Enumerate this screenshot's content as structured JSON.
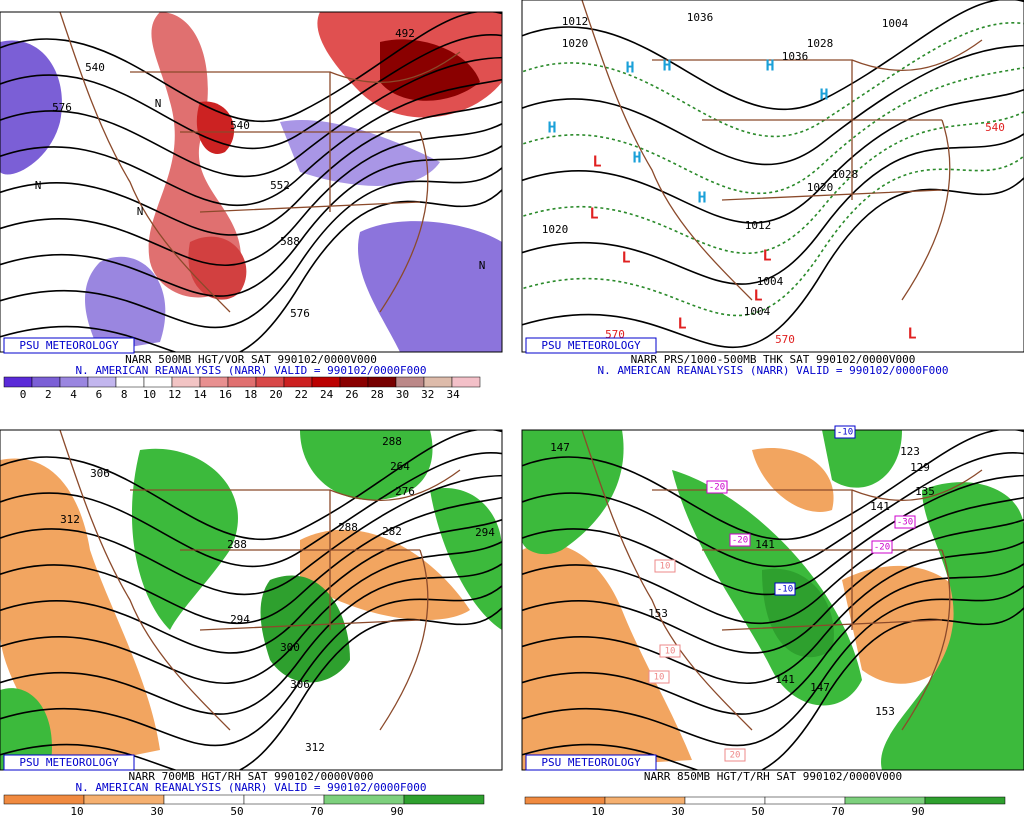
{
  "panels": [
    {
      "badge": "PSU METEOROLOGY",
      "title": "NARR 500MB HGT/VOR SAT 990102/0000V000",
      "subtitle": "N. AMERICAN REANALYSIS (NARR) VALID = 990102/0000F000",
      "colorbar": [
        0,
        2,
        4,
        6,
        8,
        10,
        12,
        14,
        16,
        18,
        20,
        22,
        24,
        26,
        28,
        30,
        32,
        34
      ],
      "labels": [
        "576",
        "540",
        "552",
        "588",
        "576",
        "492",
        "540",
        "N",
        "N",
        "N",
        "N"
      ]
    },
    {
      "badge": "PSU METEOROLOGY",
      "title": "NARR PRS/1000-500MB THK SAT 990102/0000V000",
      "subtitle": "N. AMERICAN REANALYSIS (NARR) VALID = 990102/0000F000",
      "labels": [
        "1012",
        "1020",
        "1036",
        "1036",
        "1028",
        "1004",
        "1020",
        "1028",
        "1020",
        "1012",
        "1004",
        "1004",
        "540",
        "570",
        "570",
        "H",
        "H",
        "H",
        "H",
        "H",
        "H",
        "H",
        "L",
        "L",
        "L",
        "L",
        "L",
        "L",
        "L"
      ]
    },
    {
      "badge": "PSU METEOROLOGY",
      "title": "NARR 700MB HGT/RH SAT 990102/0000V000",
      "subtitle": "N. AMERICAN REANALYSIS (NARR) VALID = 990102/0000F000",
      "colorbar": [
        10,
        30,
        50,
        70,
        90
      ],
      "labels": [
        "288",
        "306",
        "312",
        "264",
        "276",
        "288",
        "282",
        "288",
        "294",
        "300",
        "306",
        "312",
        "294"
      ]
    },
    {
      "badge": "PSU METEOROLOGY",
      "title": "NARR 850MB HGT/T/RH SAT 990102/0000V000",
      "colorbar": [
        10,
        30,
        50,
        70,
        90
      ],
      "labels": [
        "147",
        "123",
        "129",
        "135",
        "141",
        "141",
        "153",
        "141",
        "147",
        "153",
        "-10",
        "-20",
        "-20",
        "-10",
        "-30",
        "-20",
        "10",
        "10",
        "10",
        "20"
      ]
    }
  ]
}
